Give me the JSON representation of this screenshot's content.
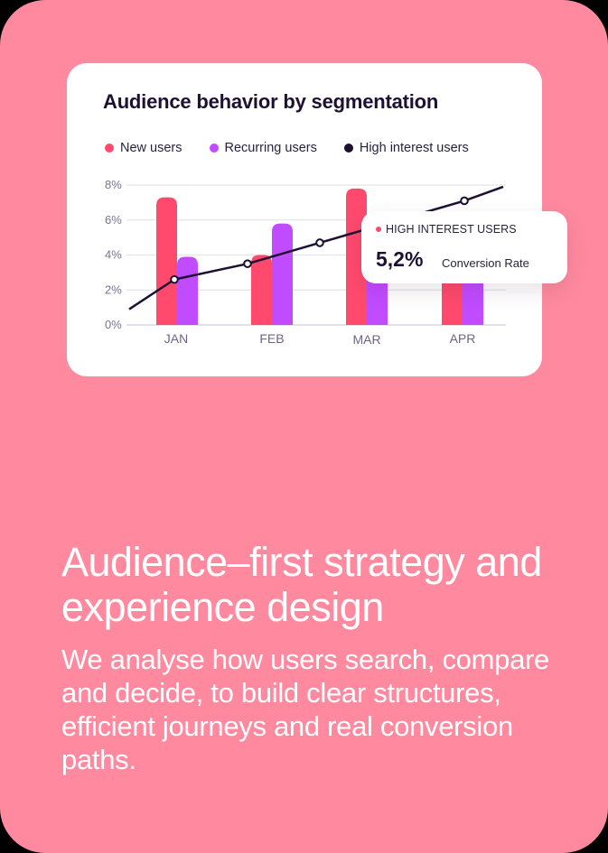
{
  "chart_card": {
    "title": "Audience behavior by segmentation",
    "legend": [
      {
        "label": "New users",
        "color": "#ff4a6e"
      },
      {
        "label": "Recurring users",
        "color": "#c04bff"
      },
      {
        "label": "High interest users",
        "color": "#1e1033"
      }
    ],
    "tooltip": {
      "series_label": "HIGH INTEREST USERS",
      "dot_color": "#ff4a6e",
      "value": "5,2%",
      "metric_label": "Conversion Rate"
    }
  },
  "chart_data": {
    "type": "bar",
    "title": "Audience behavior by segmentation",
    "xlabel": "",
    "ylabel": "",
    "categories": [
      "JAN",
      "FEB",
      "MAR",
      "APR"
    ],
    "y_ticks": [
      "0%",
      "2%",
      "4%",
      "6%",
      "8%"
    ],
    "ylim": [
      0,
      8
    ],
    "grid": true,
    "legend_position": "top",
    "series": [
      {
        "name": "New users",
        "type": "bar",
        "color": "#ff4a6e",
        "values": [
          7.3,
          4.0,
          7.8,
          4.5
        ]
      },
      {
        "name": "Recurring users",
        "type": "bar",
        "color": "#c04bff",
        "values": [
          3.9,
          5.8,
          4.5,
          4.5
        ]
      },
      {
        "name": "High interest users",
        "type": "line",
        "color": "#1e1033",
        "values": [
          2.6,
          3.5,
          4.7,
          7.1
        ]
      }
    ],
    "annotations": [
      {
        "text": "HIGH INTEREST USERS",
        "value": "5,2%",
        "label": "Conversion Rate"
      }
    ]
  },
  "headline": "Audience–first strategy and experience design",
  "body": "We analyse how users search, compare and decide, to build clear structures, efficient journeys and real conversion paths."
}
